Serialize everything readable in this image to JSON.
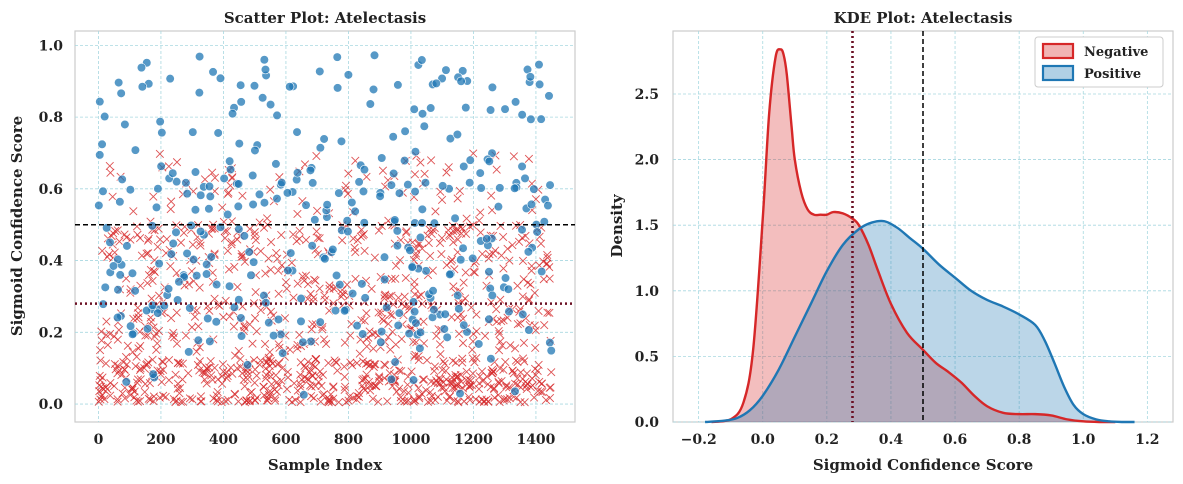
{
  "colors": {
    "negative": "#d62728",
    "positive": "#1f77b4",
    "grid": "#a8d8e0",
    "threshold_dark": "#6b1024",
    "threshold_black": "#000000"
  },
  "chart_data": [
    {
      "type": "scatter",
      "title": "Scatter Plot: Atelectasis",
      "xlabel": "Sample Index",
      "ylabel": "Sigmoid Confidence Score",
      "xlim": [
        -75,
        1525
      ],
      "ylim": [
        -0.05,
        1.04
      ],
      "xticks": [
        0,
        200,
        400,
        600,
        800,
        1000,
        1200,
        1400
      ],
      "yticks": [
        0.0,
        0.2,
        0.4,
        0.6,
        0.8,
        1.0
      ],
      "xtick_labels": [
        "0",
        "200",
        "400",
        "600",
        "800",
        "1000",
        "1200",
        "1400"
      ],
      "ytick_labels": [
        "0.0",
        "0.2",
        "0.4",
        "0.6",
        "0.8",
        "1.0"
      ],
      "grid": true,
      "hlines": [
        {
          "y": 0.5,
          "style": "dashed",
          "color": "#000000"
        },
        {
          "y": 0.28,
          "style": "dotted",
          "color": "#6b1024"
        }
      ],
      "series": [
        {
          "marker": "x",
          "color": "#d62728",
          "count": 1100,
          "n_samples": 1450,
          "distribution": "mostly between 0.0 and 0.5, densest near 0.05, sparse up to 0.7"
        },
        {
          "marker": "o",
          "color": "#1f77b4",
          "count": 350,
          "n_samples": 1450,
          "distribution": "spread 0.0 to 1.0, densest between 0.2 and 0.6"
        }
      ]
    },
    {
      "type": "area",
      "title": "KDE Plot: Atelectasis",
      "xlabel": "Sigmoid Confidence Score",
      "ylabel": "Density",
      "xlim": [
        -0.28,
        1.28
      ],
      "ylim": [
        0,
        2.98
      ],
      "xticks": [
        -0.2,
        0.0,
        0.2,
        0.4,
        0.6,
        0.8,
        1.0,
        1.2
      ],
      "yticks": [
        0.0,
        0.5,
        1.0,
        1.5,
        2.0,
        2.5
      ],
      "xtick_labels": [
        "−0.2",
        "0.0",
        "0.2",
        "0.4",
        "0.6",
        "0.8",
        "1.0",
        "1.2"
      ],
      "ytick_labels": [
        "0.0",
        "0.5",
        "1.0",
        "1.5",
        "2.0",
        "2.5"
      ],
      "grid": true,
      "legend_position": "upper-right",
      "vlines": [
        {
          "x": 0.28,
          "style": "dotted",
          "color": "#6b1024"
        },
        {
          "x": 0.5,
          "style": "dashed",
          "color": "#000000"
        }
      ],
      "series": [
        {
          "name": "Negative",
          "color": "#d62728",
          "x": [
            -0.16,
            -0.1,
            -0.06,
            -0.03,
            0.0,
            0.02,
            0.04,
            0.055,
            0.065,
            0.075,
            0.09,
            0.1,
            0.12,
            0.14,
            0.16,
            0.18,
            0.2,
            0.22,
            0.25,
            0.28,
            0.3,
            0.33,
            0.36,
            0.4,
            0.45,
            0.5,
            0.54,
            0.58,
            0.62,
            0.66,
            0.7,
            0.75,
            0.8,
            0.85,
            0.9,
            0.95,
            1.0,
            1.05,
            1.1
          ],
          "y": [
            0.0,
            0.02,
            0.15,
            0.55,
            1.55,
            2.35,
            2.78,
            2.84,
            2.8,
            2.65,
            2.25,
            2.0,
            1.75,
            1.62,
            1.58,
            1.58,
            1.58,
            1.6,
            1.59,
            1.55,
            1.5,
            1.35,
            1.15,
            0.9,
            0.68,
            0.55,
            0.45,
            0.38,
            0.3,
            0.2,
            0.12,
            0.07,
            0.06,
            0.06,
            0.05,
            0.02,
            0.005,
            0.0,
            0.0
          ]
        },
        {
          "name": "Positive",
          "color": "#1f77b4",
          "x": [
            -0.18,
            -0.12,
            -0.08,
            -0.04,
            0.0,
            0.05,
            0.1,
            0.15,
            0.2,
            0.25,
            0.3,
            0.34,
            0.38,
            0.42,
            0.46,
            0.5,
            0.55,
            0.6,
            0.65,
            0.7,
            0.75,
            0.8,
            0.85,
            0.88,
            0.91,
            0.94,
            0.97,
            1.0,
            1.04,
            1.08,
            1.12,
            1.16
          ],
          "y": [
            0.0,
            0.01,
            0.03,
            0.09,
            0.2,
            0.4,
            0.65,
            0.9,
            1.15,
            1.35,
            1.47,
            1.52,
            1.53,
            1.48,
            1.4,
            1.32,
            1.2,
            1.1,
            1.0,
            0.93,
            0.88,
            0.82,
            0.74,
            0.62,
            0.45,
            0.27,
            0.13,
            0.06,
            0.02,
            0.005,
            0.0,
            0.0
          ]
        }
      ]
    }
  ]
}
